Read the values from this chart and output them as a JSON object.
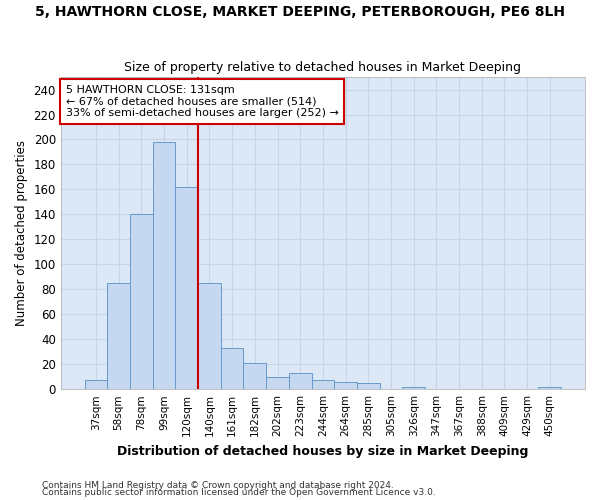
{
  "title": "5, HAWTHORN CLOSE, MARKET DEEPING, PETERBOROUGH, PE6 8LH",
  "subtitle": "Size of property relative to detached houses in Market Deeping",
  "xlabel": "Distribution of detached houses by size in Market Deeping",
  "ylabel": "Number of detached properties",
  "bar_labels": [
    "37sqm",
    "58sqm",
    "78sqm",
    "99sqm",
    "120sqm",
    "140sqm",
    "161sqm",
    "182sqm",
    "202sqm",
    "223sqm",
    "244sqm",
    "264sqm",
    "285sqm",
    "305sqm",
    "326sqm",
    "347sqm",
    "367sqm",
    "388sqm",
    "409sqm",
    "429sqm",
    "450sqm"
  ],
  "bar_values": [
    7,
    85,
    140,
    198,
    162,
    85,
    33,
    21,
    10,
    13,
    7,
    6,
    5,
    0,
    2,
    0,
    0,
    0,
    0,
    0,
    2
  ],
  "bar_color": "#c5d8f0",
  "bar_edge_color": "#6699cc",
  "vline_x": 4.5,
  "annotation_line1": "5 HAWTHORN CLOSE: 131sqm",
  "annotation_line2": "← 67% of detached houses are smaller (514)",
  "annotation_line3": "33% of semi-detached houses are larger (252) →",
  "annotation_box_color": "#ffffff",
  "annotation_box_edge_color": "#cc0000",
  "vline_color": "#cc0000",
  "ylim": [
    0,
    250
  ],
  "yticks": [
    0,
    20,
    40,
    60,
    80,
    100,
    120,
    140,
    160,
    180,
    200,
    220,
    240
  ],
  "grid_color": "#c8d4e8",
  "bg_color": "#dce8f5",
  "fig_bg_color": "#ffffff",
  "footer1": "Contains HM Land Registry data © Crown copyright and database right 2024.",
  "footer2": "Contains public sector information licensed under the Open Government Licence v3.0."
}
